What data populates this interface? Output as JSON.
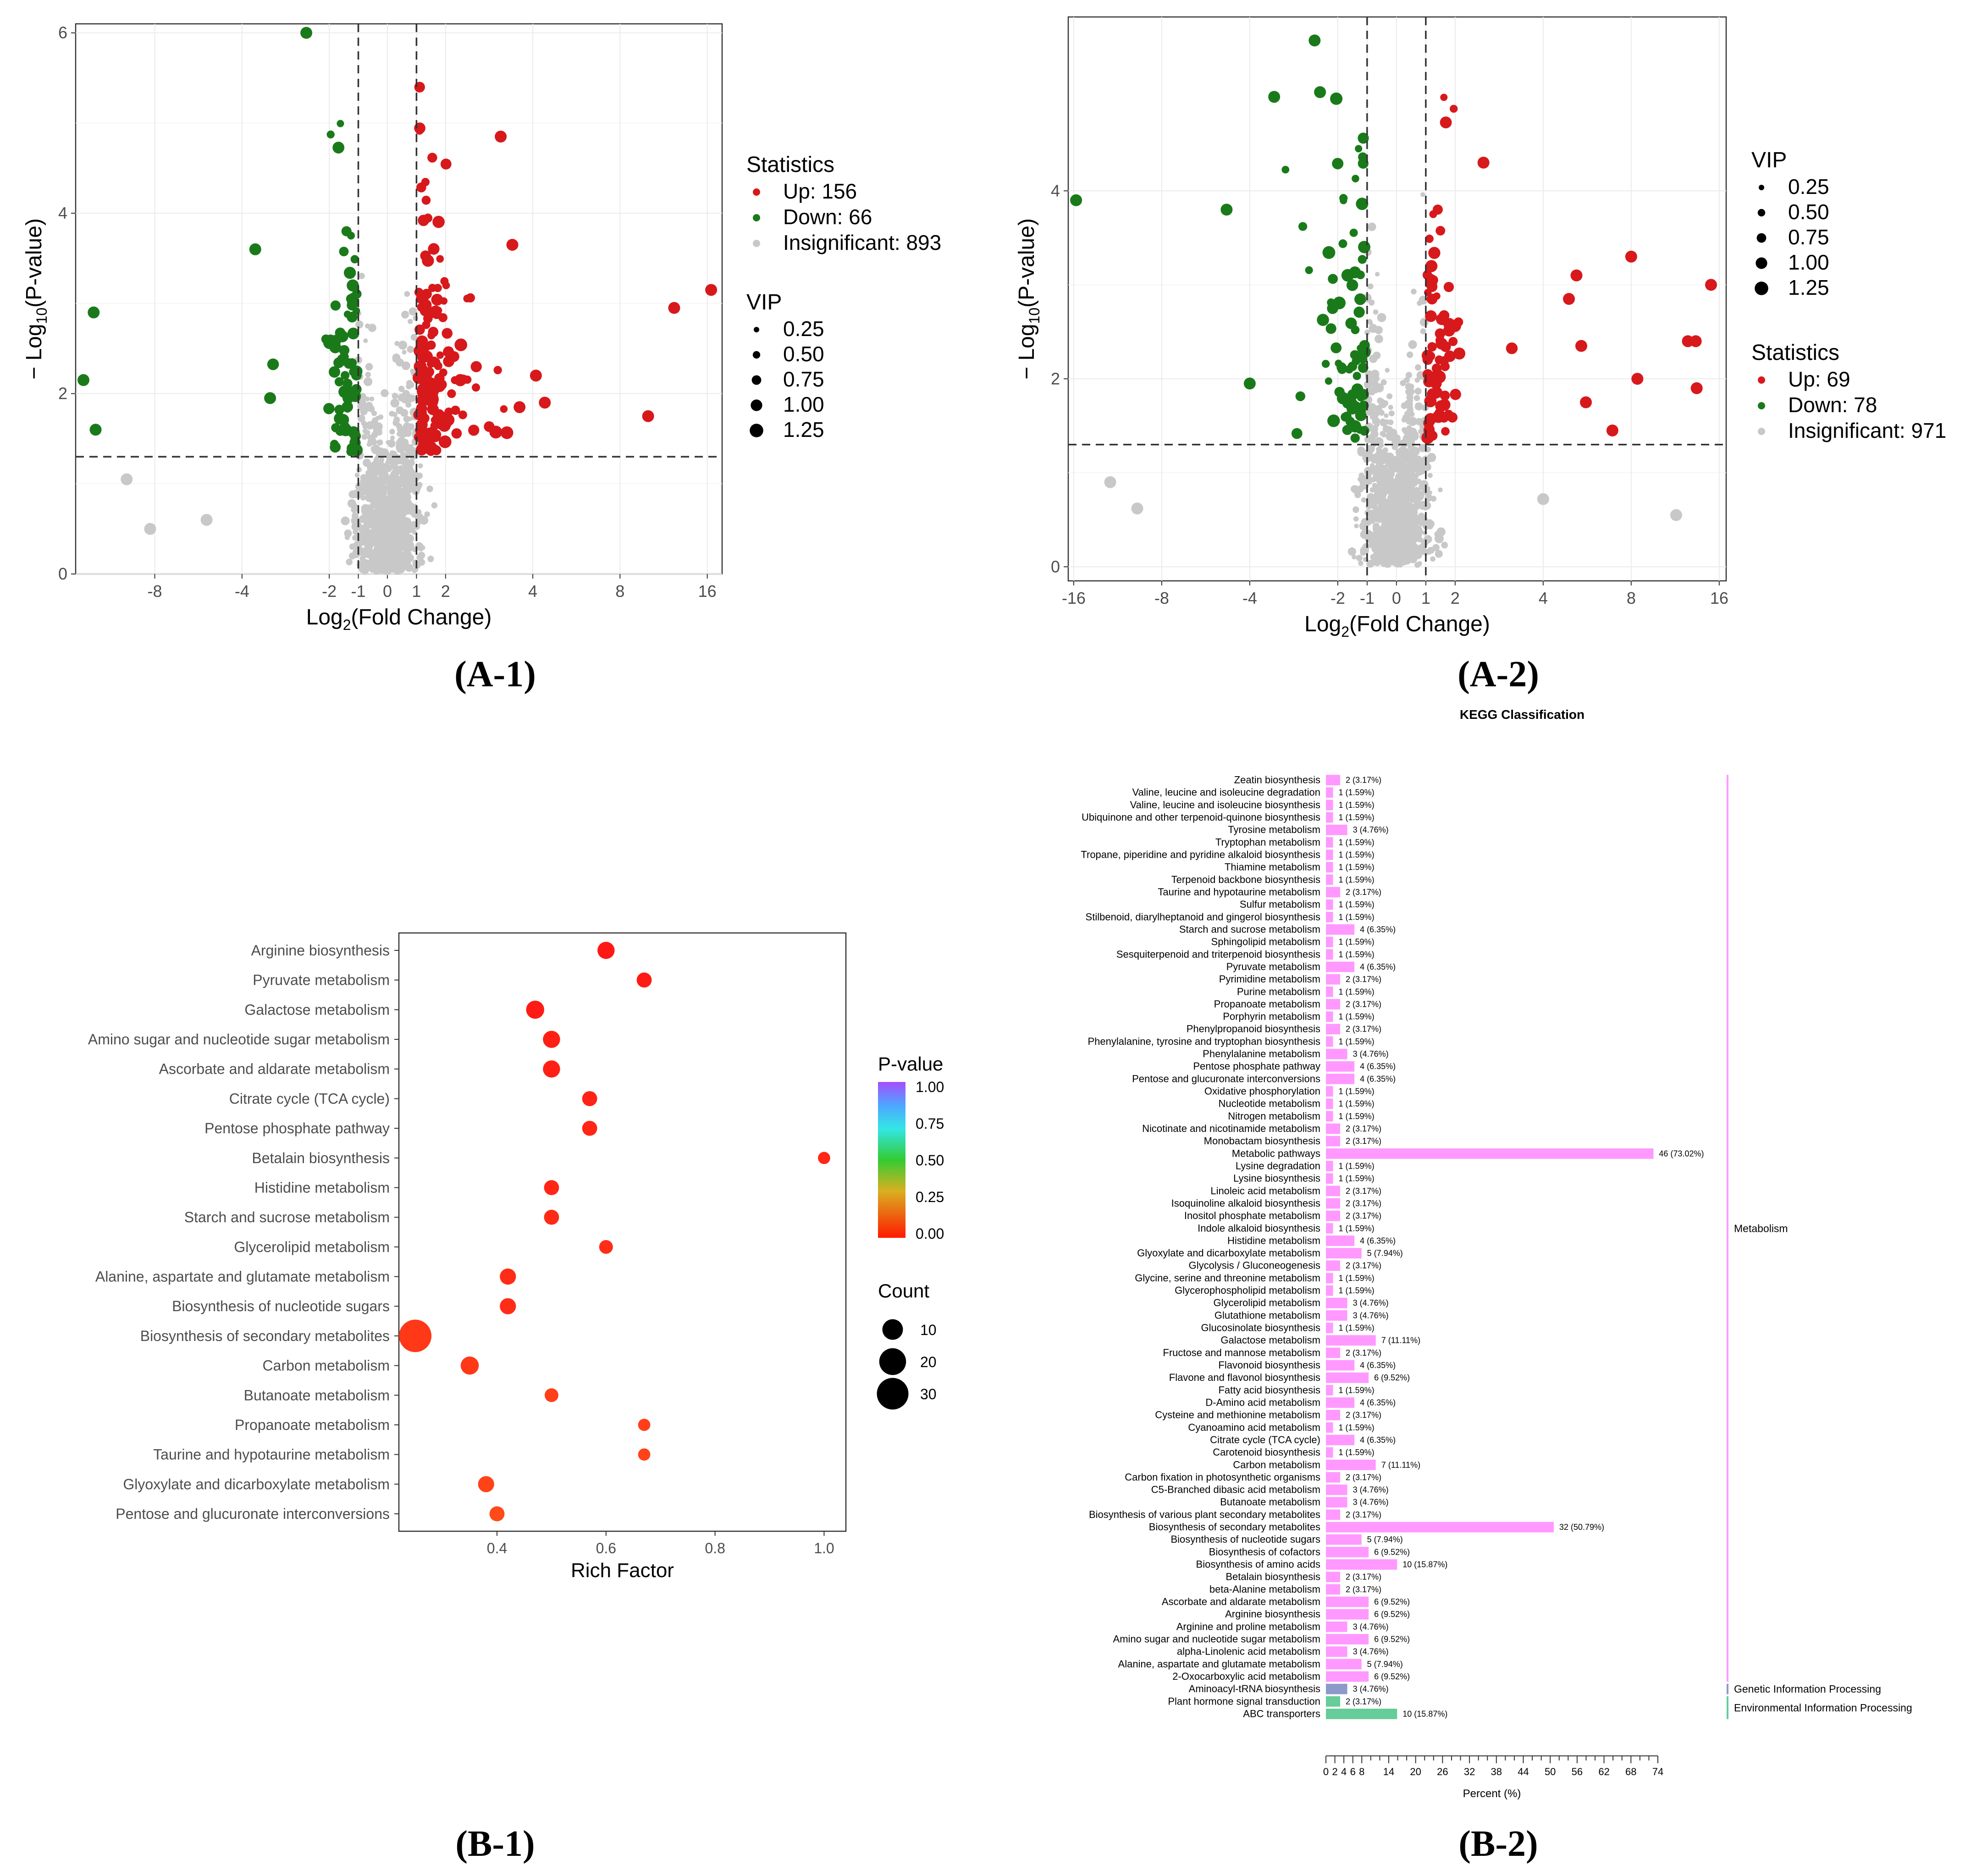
{
  "colors": {
    "up": "#d7191c",
    "down": "#1a7a1a",
    "insig": "#c8c8c8",
    "metabolism": "#ff99ff",
    "genetic": "#8b9ac8",
    "environmental": "#66cc99"
  },
  "panel_labels": {
    "a1": "(A-1)",
    "a2": "(A-2)",
    "b1": "(B-1)",
    "b2": "(B-2)"
  },
  "chart_data": [
    {
      "id": "A-1",
      "type": "scatter",
      "title": "",
      "xlabel": "Log2(Fold Change)",
      "ylabel": "-Log10(P-value)",
      "xlim": [
        -15,
        18
      ],
      "ylim": [
        0,
        6.1
      ],
      "xticks": [
        -8,
        -4,
        -2,
        -1,
        0,
        1,
        2,
        4,
        8,
        16
      ],
      "yticks": [
        0,
        2,
        4,
        6
      ],
      "thresholds": {
        "fc": [
          -1,
          1
        ],
        "p": 1.3
      },
      "legend": {
        "statistics_title": "Statistics",
        "statistics": [
          {
            "label": "Up: 156",
            "key": "up"
          },
          {
            "label": "Down: 66",
            "key": "down"
          },
          {
            "label": "Insignificant: 893",
            "key": "insig"
          }
        ],
        "vip_title": "VIP",
        "vip": [
          "0.25",
          "0.50",
          "0.75",
          "1.00",
          "1.25"
        ]
      },
      "counts": {
        "up": 156,
        "down": 66,
        "insig": 893
      },
      "highlights": [
        {
          "x": -13.0,
          "y": 2.9,
          "c": "down"
        },
        {
          "x": -14.1,
          "y": 2.15,
          "c": "down"
        },
        {
          "x": -12.8,
          "y": 1.6,
          "c": "down"
        },
        {
          "x": -2.4,
          "y": 6.0,
          "c": "down"
        },
        {
          "x": -3.6,
          "y": 3.6,
          "c": "down"
        },
        {
          "x": -3.2,
          "y": 1.95,
          "c": "down"
        },
        {
          "x": -10.0,
          "y": 1.05,
          "c": "insig"
        },
        {
          "x": -8.3,
          "y": 0.5,
          "c": "insig"
        },
        {
          "x": -5.3,
          "y": 0.6,
          "c": "insig"
        },
        {
          "x": 16.5,
          "y": 3.15,
          "c": "up"
        },
        {
          "x": 12.3,
          "y": 2.95,
          "c": "up"
        },
        {
          "x": 10.0,
          "y": 1.75,
          "c": "up"
        },
        {
          "x": 3.1,
          "y": 4.85,
          "c": "up"
        },
        {
          "x": 3.4,
          "y": 3.65,
          "c": "up"
        },
        {
          "x": 4.1,
          "y": 2.2,
          "c": "up"
        },
        {
          "x": 4.4,
          "y": 1.9,
          "c": "up"
        },
        {
          "x": 3.6,
          "y": 1.85,
          "c": "up"
        }
      ]
    },
    {
      "id": "A-2",
      "type": "scatter",
      "title": "",
      "xlabel": "Log2(Fold Change)",
      "ylabel": "-Log10(P-value)",
      "xlim": [
        -16.7,
        16.9
      ],
      "ylim": [
        -0.15,
        5.85
      ],
      "xticks": [
        -16,
        -8,
        -4,
        -2,
        -1,
        0,
        1,
        2,
        4,
        8,
        16
      ],
      "yticks": [
        0,
        2,
        4
      ],
      "thresholds": {
        "fc": [
          -1,
          1
        ],
        "p": 1.3
      },
      "legend": {
        "vip_title": "VIP",
        "vip": [
          "0.25",
          "0.50",
          "0.75",
          "1.00",
          "1.25"
        ],
        "statistics_title": "Statistics",
        "statistics": [
          {
            "label": "Up: 69",
            "key": "up"
          },
          {
            "label": "Down: 78",
            "key": "down"
          },
          {
            "label": "Insignificant: 971",
            "key": "insig"
          }
        ]
      },
      "counts": {
        "up": 69,
        "down": 78,
        "insig": 971
      },
      "highlights": [
        {
          "x": -15.7,
          "y": 3.9,
          "c": "down"
        },
        {
          "x": -4.8,
          "y": 3.8,
          "c": "down"
        },
        {
          "x": -4.0,
          "y": 1.95,
          "c": "down"
        },
        {
          "x": -3.3,
          "y": 5.0,
          "c": "down"
        },
        {
          "x": -2.4,
          "y": 5.6,
          "c": "down"
        },
        {
          "x": -2.3,
          "y": 5.05,
          "c": "down"
        },
        {
          "x": -12.0,
          "y": 0.9,
          "c": "insig"
        },
        {
          "x": -9.7,
          "y": 0.62,
          "c": "insig"
        },
        {
          "x": 11.4,
          "y": 0.55,
          "c": "insig"
        },
        {
          "x": 4.0,
          "y": 0.72,
          "c": "insig"
        },
        {
          "x": 15.0,
          "y": 3.0,
          "c": "up"
        },
        {
          "x": 8.0,
          "y": 3.3,
          "c": "up"
        },
        {
          "x": 12.5,
          "y": 2.4,
          "c": "up"
        },
        {
          "x": 13.3,
          "y": 2.4,
          "c": "up"
        },
        {
          "x": 13.4,
          "y": 1.9,
          "c": "up"
        },
        {
          "x": 8.4,
          "y": 2.0,
          "c": "up"
        },
        {
          "x": 6.9,
          "y": 1.45,
          "c": "up"
        },
        {
          "x": 5.2,
          "y": 3.1,
          "c": "up"
        },
        {
          "x": 4.9,
          "y": 2.85,
          "c": "up"
        },
        {
          "x": 5.4,
          "y": 2.35,
          "c": "up"
        },
        {
          "x": 5.6,
          "y": 1.75,
          "c": "up"
        },
        {
          "x": 2.5,
          "y": 4.3,
          "c": "up"
        }
      ]
    },
    {
      "id": "B-1",
      "type": "scatter",
      "title": "",
      "xlabel": "Rich Factor",
      "ylabel": "",
      "xlim": [
        0.22,
        1.04
      ],
      "xticks": [
        0.4,
        0.6,
        0.8,
        1.0
      ],
      "legend": {
        "pvalue_title": "P-value",
        "pvalue_ticks": [
          "1.00",
          "0.75",
          "0.50",
          "0.25",
          "0.00"
        ],
        "count_title": "Count",
        "count_ticks": [
          "10",
          "20",
          "30"
        ]
      },
      "categories": [
        "Arginine biosynthesis",
        "Pyruvate metabolism",
        "Galactose metabolism",
        "Amino sugar and nucleotide sugar metabolism",
        "Ascorbate and aldarate metabolism",
        "Citrate cycle (TCA cycle)",
        "Pentose phosphate pathway",
        "Betalain biosynthesis",
        "Histidine metabolism",
        "Starch and sucrose metabolism",
        "Glycerolipid metabolism",
        "Alanine, aspartate and glutamate metabolism",
        "Biosynthesis of nucleotide sugars",
        "Biosynthesis of secondary metabolites",
        "Carbon metabolism",
        "Butanoate metabolism",
        "Propanoate metabolism",
        "Taurine and hypotaurine metabolism",
        "Glyoxylate and dicarboxylate metabolism",
        "Pentose and glucuronate interconversions"
      ],
      "rich_factor": [
        0.6,
        0.67,
        0.47,
        0.5,
        0.5,
        0.57,
        0.57,
        1.0,
        0.5,
        0.5,
        0.6,
        0.42,
        0.42,
        0.25,
        0.35,
        0.5,
        0.67,
        0.67,
        0.38,
        0.4
      ],
      "count": [
        6,
        4,
        7,
        6,
        6,
        4,
        4,
        2,
        4,
        4,
        3,
        5,
        5,
        32,
        7,
        3,
        2,
        2,
        5,
        4
      ],
      "pvalue": [
        0.01,
        0.02,
        0.02,
        0.03,
        0.03,
        0.04,
        0.05,
        0.05,
        0.05,
        0.06,
        0.07,
        0.07,
        0.07,
        0.1,
        0.1,
        0.12,
        0.12,
        0.13,
        0.13,
        0.15
      ]
    },
    {
      "id": "B-2",
      "type": "bar",
      "title": "KEGG Classification",
      "xlabel": "Percent (%)",
      "ylabel": "",
      "xlim": [
        0,
        74
      ],
      "xticks": [
        "0",
        "2",
        "4",
        "6",
        "8",
        "14",
        "20",
        "26",
        "32",
        "38",
        "44",
        "50",
        "56",
        "62",
        "68",
        "74"
      ],
      "groups": [
        {
          "name": "Metabolism",
          "key": "metabolism",
          "from": 0,
          "to": 72
        },
        {
          "name": "Genetic Information Processing",
          "key": "genetic",
          "from": 73,
          "to": 73
        },
        {
          "name": "Environmental Information Processing",
          "key": "environmental",
          "from": 74,
          "to": 75
        }
      ],
      "bars": [
        {
          "label": "Zeatin biosynthesis",
          "value": 3.17,
          "text": "2 (3.17%)"
        },
        {
          "label": "Valine, leucine and isoleucine degradation",
          "value": 1.59,
          "text": "1 (1.59%)"
        },
        {
          "label": "Valine, leucine and isoleucine biosynthesis",
          "value": 1.59,
          "text": "1 (1.59%)"
        },
        {
          "label": "Ubiquinone and other terpenoid-quinone biosynthesis",
          "value": 1.59,
          "text": "1 (1.59%)"
        },
        {
          "label": "Tyrosine metabolism",
          "value": 4.76,
          "text": "3 (4.76%)"
        },
        {
          "label": "Tryptophan metabolism",
          "value": 1.59,
          "text": "1 (1.59%)"
        },
        {
          "label": "Tropane, piperidine and pyridine alkaloid biosynthesis",
          "value": 1.59,
          "text": "1 (1.59%)"
        },
        {
          "label": "Thiamine metabolism",
          "value": 1.59,
          "text": "1 (1.59%)"
        },
        {
          "label": "Terpenoid backbone biosynthesis",
          "value": 1.59,
          "text": "1 (1.59%)"
        },
        {
          "label": "Taurine and hypotaurine metabolism",
          "value": 3.17,
          "text": "2 (3.17%)"
        },
        {
          "label": "Sulfur metabolism",
          "value": 1.59,
          "text": "1 (1.59%)"
        },
        {
          "label": "Stilbenoid, diarylheptanoid and gingerol biosynthesis",
          "value": 1.59,
          "text": "1 (1.59%)"
        },
        {
          "label": "Starch and sucrose metabolism",
          "value": 6.35,
          "text": "4 (6.35%)"
        },
        {
          "label": "Sphingolipid metabolism",
          "value": 1.59,
          "text": "1 (1.59%)"
        },
        {
          "label": "Sesquiterpenoid and triterpenoid biosynthesis",
          "value": 1.59,
          "text": "1 (1.59%)"
        },
        {
          "label": "Pyruvate metabolism",
          "value": 6.35,
          "text": "4 (6.35%)"
        },
        {
          "label": "Pyrimidine metabolism",
          "value": 3.17,
          "text": "2 (3.17%)"
        },
        {
          "label": "Purine metabolism",
          "value": 1.59,
          "text": "1 (1.59%)"
        },
        {
          "label": "Propanoate metabolism",
          "value": 3.17,
          "text": "2 (3.17%)"
        },
        {
          "label": "Porphyrin metabolism",
          "value": 1.59,
          "text": "1 (1.59%)"
        },
        {
          "label": "Phenylpropanoid biosynthesis",
          "value": 3.17,
          "text": "2 (3.17%)"
        },
        {
          "label": "Phenylalanine, tyrosine and tryptophan biosynthesis",
          "value": 1.59,
          "text": "1 (1.59%)"
        },
        {
          "label": "Phenylalanine metabolism",
          "value": 4.76,
          "text": "3 (4.76%)"
        },
        {
          "label": "Pentose phosphate pathway",
          "value": 6.35,
          "text": "4 (6.35%)"
        },
        {
          "label": "Pentose and glucuronate interconversions",
          "value": 6.35,
          "text": "4 (6.35%)"
        },
        {
          "label": "Oxidative phosphorylation",
          "value": 1.59,
          "text": "1 (1.59%)"
        },
        {
          "label": "Nucleotide metabolism",
          "value": 1.59,
          "text": "1 (1.59%)"
        },
        {
          "label": "Nitrogen metabolism",
          "value": 1.59,
          "text": "1 (1.59%)"
        },
        {
          "label": "Nicotinate and nicotinamide metabolism",
          "value": 3.17,
          "text": "2 (3.17%)"
        },
        {
          "label": "Monobactam biosynthesis",
          "value": 3.17,
          "text": "2 (3.17%)"
        },
        {
          "label": "Metabolic pathways",
          "value": 73.02,
          "text": "46 (73.02%)"
        },
        {
          "label": "Lysine degradation",
          "value": 1.59,
          "text": "1 (1.59%)"
        },
        {
          "label": "Lysine biosynthesis",
          "value": 1.59,
          "text": "1 (1.59%)"
        },
        {
          "label": "Linoleic acid metabolism",
          "value": 3.17,
          "text": "2 (3.17%)"
        },
        {
          "label": "Isoquinoline alkaloid biosynthesis",
          "value": 3.17,
          "text": "2 (3.17%)"
        },
        {
          "label": "Inositol phosphate metabolism",
          "value": 3.17,
          "text": "2 (3.17%)"
        },
        {
          "label": "Indole alkaloid biosynthesis",
          "value": 1.59,
          "text": "1 (1.59%)"
        },
        {
          "label": "Histidine metabolism",
          "value": 6.35,
          "text": "4 (6.35%)"
        },
        {
          "label": "Glyoxylate and dicarboxylate metabolism",
          "value": 7.94,
          "text": "5 (7.94%)"
        },
        {
          "label": "Glycolysis / Gluconeogenesis",
          "value": 3.17,
          "text": "2 (3.17%)"
        },
        {
          "label": "Glycine, serine and threonine metabolism",
          "value": 1.59,
          "text": "1 (1.59%)"
        },
        {
          "label": "Glycerophospholipid metabolism",
          "value": 1.59,
          "text": "1 (1.59%)"
        },
        {
          "label": "Glycerolipid metabolism",
          "value": 4.76,
          "text": "3 (4.76%)"
        },
        {
          "label": "Glutathione metabolism",
          "value": 4.76,
          "text": "3 (4.76%)"
        },
        {
          "label": "Glucosinolate biosynthesis",
          "value": 1.59,
          "text": "1 (1.59%)"
        },
        {
          "label": "Galactose metabolism",
          "value": 11.11,
          "text": "7 (11.11%)"
        },
        {
          "label": "Fructose and mannose metabolism",
          "value": 3.17,
          "text": "2 (3.17%)"
        },
        {
          "label": "Flavonoid biosynthesis",
          "value": 6.35,
          "text": "4 (6.35%)"
        },
        {
          "label": "Flavone and flavonol biosynthesis",
          "value": 9.52,
          "text": "6 (9.52%)"
        },
        {
          "label": "Fatty acid biosynthesis",
          "value": 1.59,
          "text": "1 (1.59%)"
        },
        {
          "label": "D-Amino acid metabolism",
          "value": 6.35,
          "text": "4 (6.35%)"
        },
        {
          "label": "Cysteine and methionine metabolism",
          "value": 3.17,
          "text": "2 (3.17%)"
        },
        {
          "label": "Cyanoamino acid metabolism",
          "value": 1.59,
          "text": "1 (1.59%)"
        },
        {
          "label": "Citrate cycle (TCA cycle)",
          "value": 6.35,
          "text": "4 (6.35%)"
        },
        {
          "label": "Carotenoid biosynthesis",
          "value": 1.59,
          "text": "1 (1.59%)"
        },
        {
          "label": "Carbon metabolism",
          "value": 11.11,
          "text": "7 (11.11%)"
        },
        {
          "label": "Carbon fixation in photosynthetic organisms",
          "value": 3.17,
          "text": "2 (3.17%)"
        },
        {
          "label": "C5-Branched dibasic acid metabolism",
          "value": 4.76,
          "text": "3 (4.76%)"
        },
        {
          "label": "Butanoate metabolism",
          "value": 4.76,
          "text": "3 (4.76%)"
        },
        {
          "label": "Biosynthesis of various plant secondary metabolites",
          "value": 3.17,
          "text": "2 (3.17%)"
        },
        {
          "label": "Biosynthesis of secondary metabolites",
          "value": 50.79,
          "text": "32 (50.79%)"
        },
        {
          "label": "Biosynthesis of nucleotide sugars",
          "value": 7.94,
          "text": "5 (7.94%)"
        },
        {
          "label": "Biosynthesis of cofactors",
          "value": 9.52,
          "text": "6 (9.52%)"
        },
        {
          "label": "Biosynthesis of amino acids",
          "value": 15.87,
          "text": "10 (15.87%)"
        },
        {
          "label": "Betalain biosynthesis",
          "value": 3.17,
          "text": "2 (3.17%)"
        },
        {
          "label": "beta-Alanine metabolism",
          "value": 3.17,
          "text": "2 (3.17%)"
        },
        {
          "label": "Ascorbate and aldarate metabolism",
          "value": 9.52,
          "text": "6 (9.52%)"
        },
        {
          "label": "Arginine biosynthesis",
          "value": 9.52,
          "text": "6 (9.52%)"
        },
        {
          "label": "Arginine and proline metabolism",
          "value": 4.76,
          "text": "3 (4.76%)"
        },
        {
          "label": "Amino sugar and nucleotide sugar metabolism",
          "value": 9.52,
          "text": "6 (9.52%)"
        },
        {
          "label": "alpha-Linolenic acid metabolism",
          "value": 4.76,
          "text": "3 (4.76%)"
        },
        {
          "label": "Alanine, aspartate and glutamate metabolism",
          "value": 7.94,
          "text": "5 (7.94%)"
        },
        {
          "label": "2-Oxocarboxylic acid metabolism",
          "value": 9.52,
          "text": "6 (9.52%)"
        },
        {
          "label": "Aminoacyl-tRNA biosynthesis",
          "value": 4.76,
          "text": "3 (4.76%)"
        },
        {
          "label": "Plant hormone signal transduction",
          "value": 3.17,
          "text": "2 (3.17%)"
        },
        {
          "label": "ABC transporters",
          "value": 15.87,
          "text": "10 (15.87%)"
        }
      ]
    }
  ]
}
